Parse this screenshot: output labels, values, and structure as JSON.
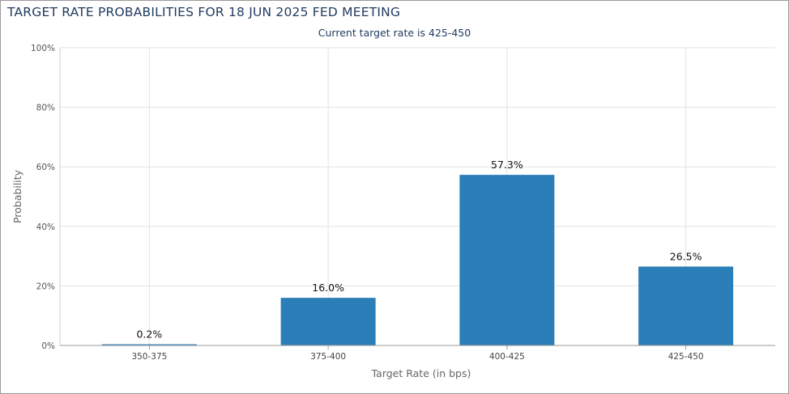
{
  "chart_data": {
    "type": "bar",
    "title": "TARGET RATE PROBABILITIES FOR 18 JUN 2025 FED MEETING",
    "subtitle": "Current target rate is 425-450",
    "xlabel": "Target Rate (in bps)",
    "ylabel": "Probability",
    "categories": [
      "350-375",
      "375-400",
      "400-425",
      "425-450"
    ],
    "values": [
      0.2,
      16.0,
      57.3,
      26.5
    ],
    "data_labels": [
      "0.2%",
      "16.0%",
      "57.3%",
      "26.5%"
    ],
    "y_ticks": [
      "0%",
      "20%",
      "40%",
      "60%",
      "80%",
      "100%"
    ],
    "ylim": [
      0,
      100
    ],
    "grid": true,
    "bar_color": "#2b7fb8"
  }
}
